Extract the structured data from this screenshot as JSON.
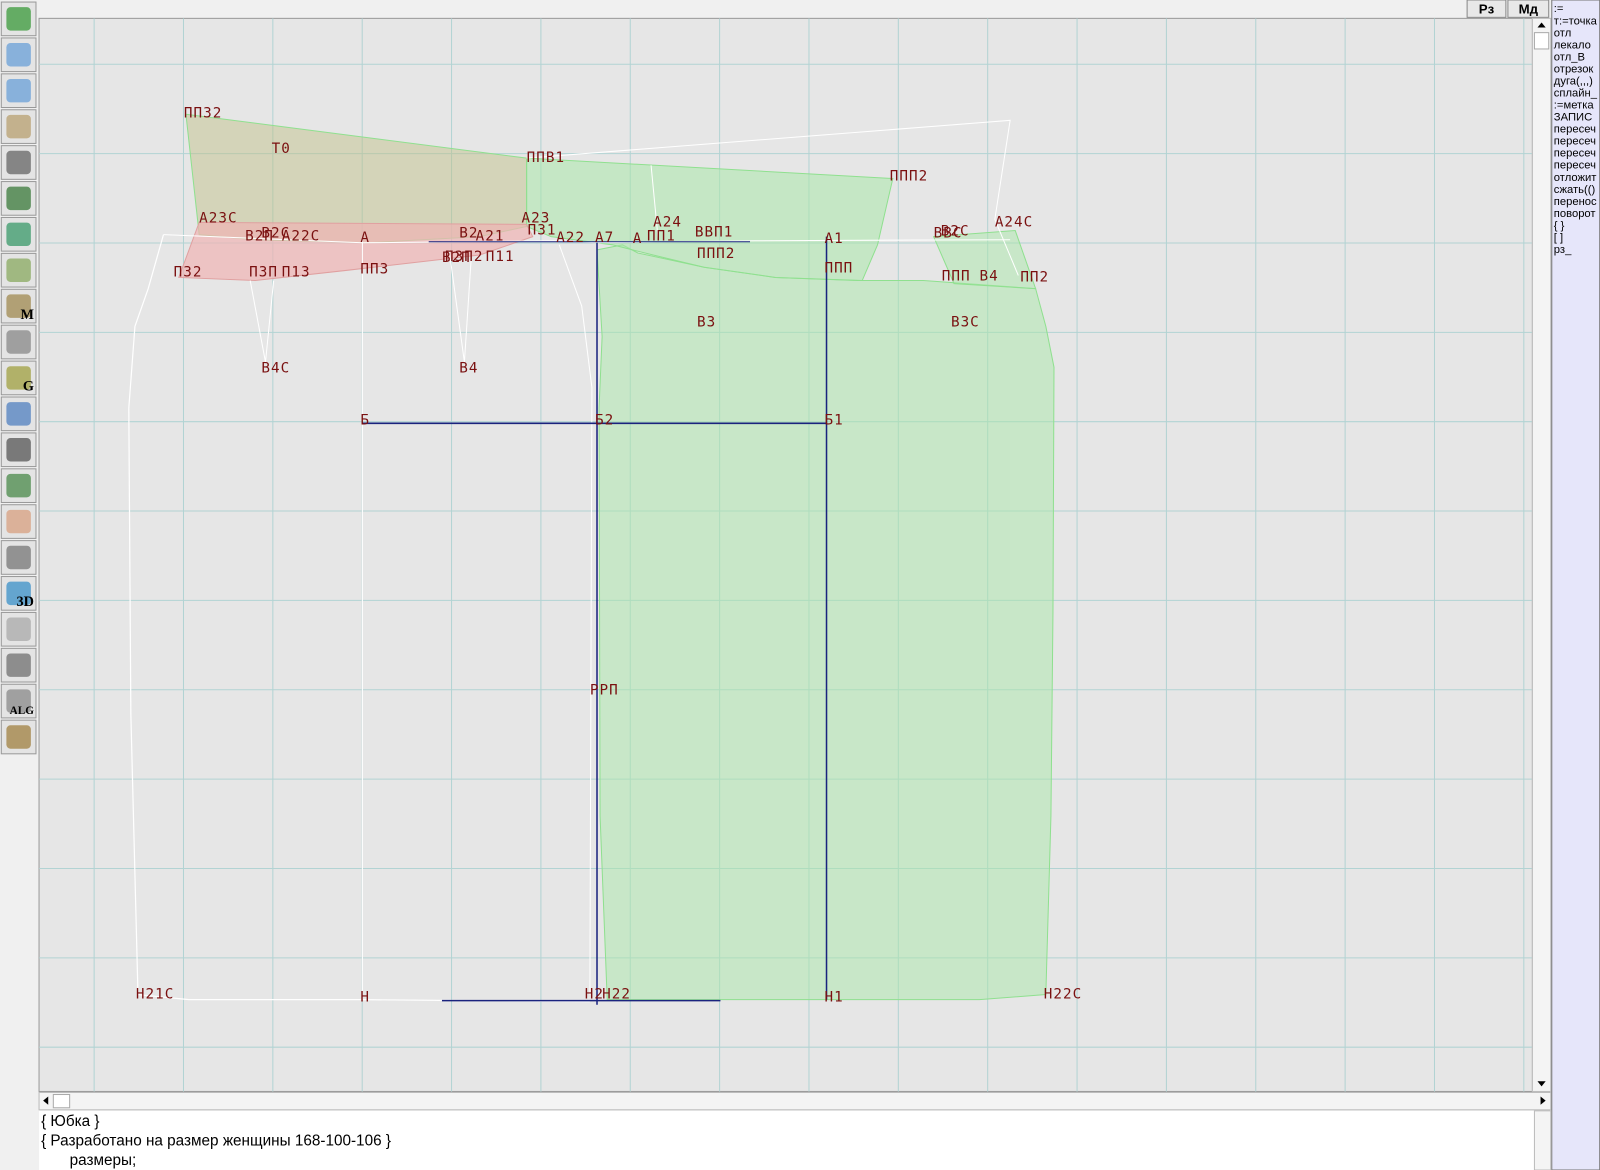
{
  "top_buttons": [
    "Рз",
    "Мд"
  ],
  "toolbar": {
    "icon_labels": [
      "M",
      "G",
      "3D",
      "ALG"
    ]
  },
  "drawing": {
    "point_labels": [
      "ПП32",
      "Т0",
      "ППВ1",
      "ППП2",
      "А23С",
      "В2С",
      "В2П",
      "А22С",
      "А",
      "В2П",
      "В2",
      "А21",
      "А23",
      "П31",
      "А22",
      "А7",
      "А24",
      "А",
      "ПП1",
      "ВВП1",
      "ППП2",
      "А1",
      "ППП",
      "ВВС",
      "В2С",
      "А24С",
      "ПП2",
      "ППП",
      "В4",
      "П32",
      "П3П",
      "П13",
      "ПП3",
      "П3П2",
      "П11",
      "В3",
      "В3С",
      "В4С",
      "В4",
      "Б",
      "Б2",
      "Б1",
      "РРП",
      "Н21С",
      "Н",
      "Н2",
      "Н22",
      "Н1",
      "Н22С"
    ]
  },
  "right_panel": {
    "lines": [
      ":=",
      "т:=точка",
      "отл",
      "лекало",
      "отл_В",
      "отрезок",
      "дуга(,,,)",
      "сплайн_",
      ":=метка",
      "ЗАПИС",
      "пересеч",
      "пересеч",
      "пересеч",
      "пересеч",
      "отложит",
      "сжать(()",
      "перенос",
      "поворот",
      "{ }",
      "[ ]",
      "рз_"
    ]
  },
  "editor": {
    "lines": [
      "{ Юбка }",
      "{ Разработано на размер женщины 168-100-106 }",
      "размеры;"
    ]
  }
}
